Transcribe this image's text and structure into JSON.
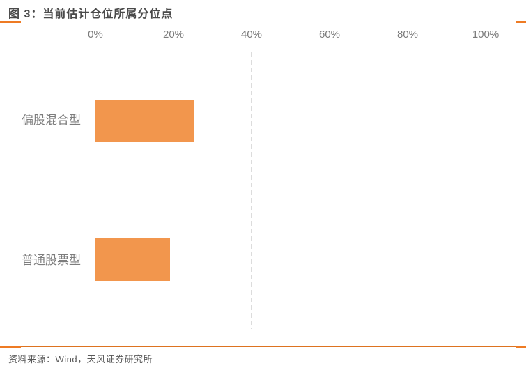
{
  "figure": {
    "title": "图 3：当前估计仓位所属分位点",
    "source": "资料来源：Wind，天风证券研究所"
  },
  "colors": {
    "accent_rule": "#ee7b24",
    "thin_rule": "#dd7320",
    "bar": "#f2964d",
    "title_text": "#4a4a4a",
    "axis_text": "#7b7b7b",
    "grid": "#dcdcdc"
  },
  "chart_data": {
    "type": "bar",
    "orientation": "horizontal",
    "title": "当前估计仓位所属分位点",
    "categories": [
      "偏股混合型",
      "普通股票型"
    ],
    "values": [
      25.4,
      19.1
    ],
    "x_ticks": [
      "0%",
      "20%",
      "40%",
      "60%",
      "80%",
      "100%"
    ],
    "xlim": [
      0,
      100
    ],
    "axis_position": "top",
    "grid": "dashed-vertical-gridlines",
    "legend": "none",
    "bar_color": "#f2964d"
  }
}
